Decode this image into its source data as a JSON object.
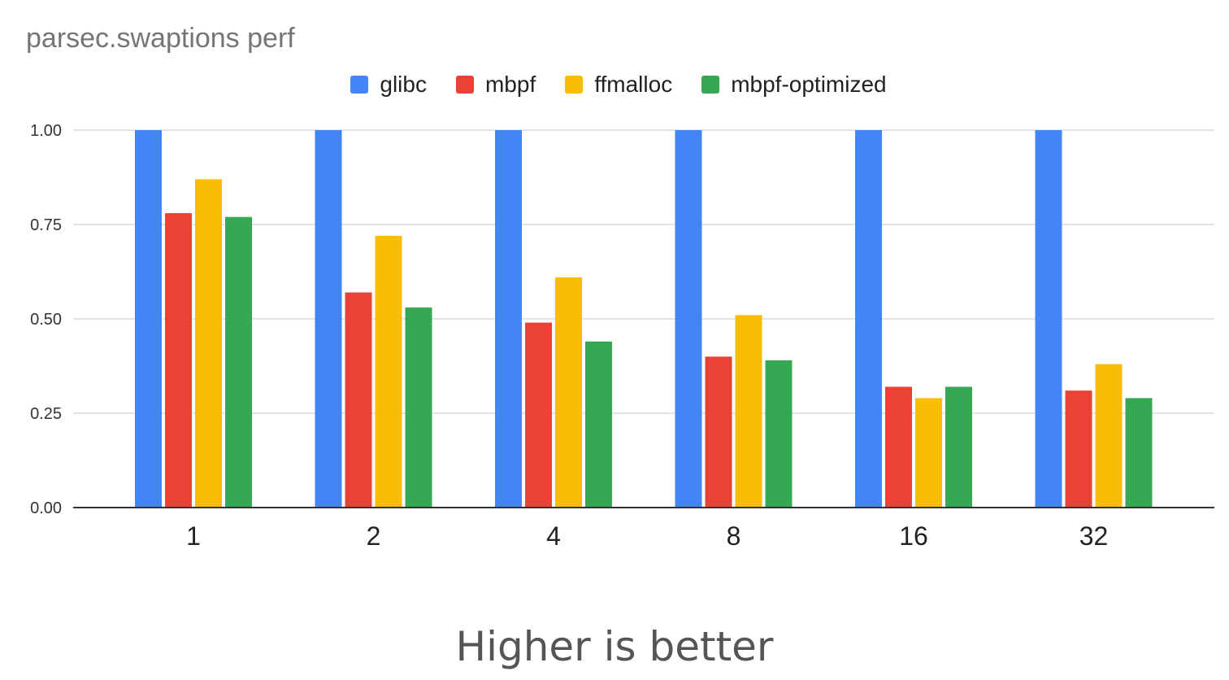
{
  "chart_data": {
    "type": "bar",
    "title": "parsec.swaptions perf",
    "xlabel": "",
    "ylabel": "",
    "categories": [
      "1",
      "2",
      "4",
      "8",
      "16",
      "32"
    ],
    "series": [
      {
        "name": "glibc",
        "color": "#4285F4",
        "values": [
          1.0,
          1.0,
          1.0,
          1.0,
          1.0,
          1.0
        ]
      },
      {
        "name": "mbpf",
        "color": "#EA4335",
        "values": [
          0.78,
          0.57,
          0.49,
          0.4,
          0.32,
          0.31
        ]
      },
      {
        "name": "ffmalloc",
        "color": "#FBBC04",
        "values": [
          0.87,
          0.72,
          0.61,
          0.51,
          0.29,
          0.38
        ]
      },
      {
        "name": "mbpf-optimized",
        "color": "#34A853",
        "values": [
          0.77,
          0.53,
          0.44,
          0.39,
          0.32,
          0.29
        ]
      }
    ],
    "ylim": [
      0,
      1
    ],
    "yticks": [
      "0.00",
      "0.25",
      "0.50",
      "0.75",
      "1.00"
    ],
    "grid": true,
    "legend": "top-center"
  },
  "footer": {
    "note": "Higher is better"
  }
}
